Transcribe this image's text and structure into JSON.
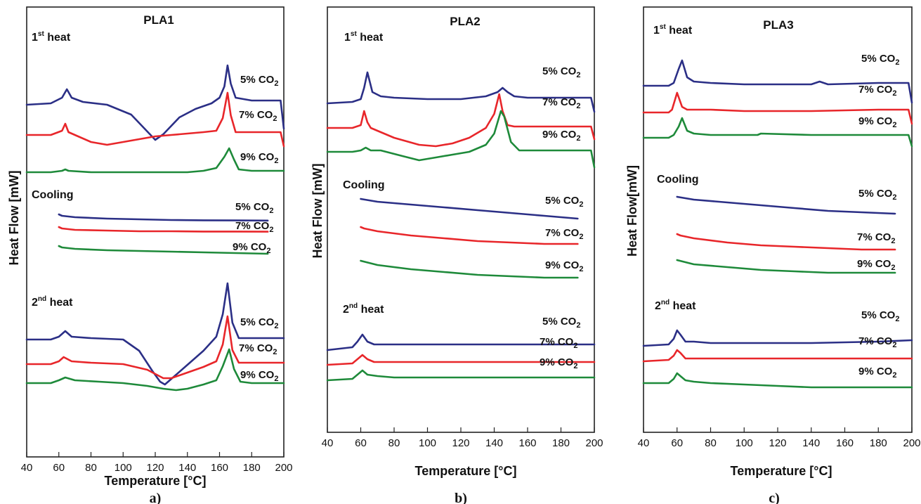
{
  "figure": {
    "x_axis_label": "Temperature [°C]",
    "heat_flow_label": "Heat Flow [mW]",
    "heat_flow_label_c": "Heat Flow[mW]"
  },
  "colors": {
    "5% CO2": "#2b2f86",
    "7% CO2": "#e8262a",
    "9% CO2": "#1e8a3a"
  },
  "series_labels": [
    "5% CO2",
    "7% CO2",
    "9% CO2"
  ],
  "section_labels": {
    "first_heat": "1st heat",
    "cooling": "Cooling",
    "second_heat": "2nd heat"
  },
  "chart_data": [
    {
      "type": "line",
      "panel": "a)",
      "title": "PLA1",
      "xlabel": "Temperature [°C]",
      "ylabel": "Heat Flow [mW]",
      "xlim": [
        40,
        200
      ],
      "xticks": [
        40,
        60,
        80,
        100,
        120,
        140,
        160,
        180,
        200
      ],
      "y_units": "relative (offset traces, no numeric scale shown)",
      "series": [
        {
          "group": "1st heat",
          "name": "5% CO2",
          "x": [
            40,
            55,
            62,
            65,
            68,
            75,
            90,
            105,
            115,
            120,
            125,
            135,
            145,
            155,
            160,
            163,
            165,
            167,
            170,
            180,
            190,
            198,
            200
          ],
          "y": [
            -3,
            -2,
            2,
            8,
            2,
            -1,
            -3,
            -10,
            -22,
            -28,
            -24,
            -12,
            -6,
            -2,
            2,
            10,
            25,
            12,
            2,
            0,
            0,
            0,
            -20
          ]
        },
        {
          "group": "1st heat",
          "name": "7% CO2",
          "x": [
            40,
            55,
            62,
            64,
            66,
            72,
            80,
            90,
            100,
            110,
            120,
            130,
            140,
            150,
            158,
            162,
            165,
            167,
            170,
            180,
            190,
            198,
            200
          ],
          "y": [
            -2,
            -2,
            1,
            6,
            0,
            -3,
            -7,
            -9,
            -7,
            -5,
            -3,
            -2,
            -1,
            0,
            1,
            10,
            28,
            12,
            0,
            0,
            0,
            0,
            -10
          ]
        },
        {
          "group": "1st heat",
          "name": "9% CO2",
          "x": [
            40,
            55,
            62,
            64,
            66,
            80,
            100,
            120,
            140,
            150,
            158,
            163,
            166,
            169,
            172,
            180,
            190,
            200
          ],
          "y": [
            -1,
            -1,
            0,
            1,
            0,
            -1,
            -1,
            -1,
            -1,
            0,
            2,
            10,
            16,
            8,
            1,
            0,
            0,
            0
          ]
        },
        {
          "group": "Cooling",
          "name": "5% CO2",
          "x": [
            60,
            62,
            70,
            90,
            110,
            130,
            150,
            170,
            190
          ],
          "y": [
            0,
            -1,
            -2,
            -3,
            -3.5,
            -4,
            -4.2,
            -4.3,
            -4.4
          ]
        },
        {
          "group": "Cooling",
          "name": "7% CO2",
          "x": [
            60,
            62,
            70,
            90,
            110,
            130,
            150,
            170,
            190
          ],
          "y": [
            0,
            -1,
            -2,
            -2.5,
            -3,
            -3,
            -3.2,
            -3.2,
            -3.3
          ]
        },
        {
          "group": "Cooling",
          "name": "9% CO2",
          "x": [
            60,
            62,
            70,
            90,
            110,
            130,
            150,
            170,
            190
          ],
          "y": [
            0,
            -1,
            -2,
            -3,
            -3.5,
            -4,
            -4.5,
            -5,
            -5.5
          ]
        },
        {
          "group": "2nd heat",
          "name": "5% CO2",
          "x": [
            40,
            55,
            60,
            64,
            68,
            80,
            100,
            110,
            118,
            123,
            126,
            130,
            140,
            150,
            158,
            162,
            165,
            168,
            172,
            180,
            200
          ],
          "y": [
            0,
            0,
            2,
            6,
            2,
            1,
            0,
            -8,
            -22,
            -30,
            -32,
            -28,
            -18,
            -8,
            2,
            18,
            40,
            12,
            1,
            1,
            1
          ]
        },
        {
          "group": "2nd heat",
          "name": "7% CO2",
          "x": [
            40,
            55,
            60,
            63,
            68,
            80,
            100,
            115,
            125,
            130,
            140,
            150,
            158,
            162,
            165,
            168,
            172,
            180,
            200
          ],
          "y": [
            0,
            0,
            2,
            5,
            2,
            1,
            0,
            -4,
            -10,
            -10,
            -6,
            -2,
            2,
            14,
            34,
            10,
            1,
            1,
            1
          ]
        },
        {
          "group": "2nd heat",
          "name": "9% CO2",
          "x": [
            40,
            55,
            60,
            64,
            70,
            85,
            100,
            115,
            125,
            133,
            140,
            150,
            158,
            162,
            166,
            169,
            173,
            180,
            200
          ],
          "y": [
            0,
            0,
            2,
            4,
            2,
            1,
            0,
            -2,
            -4,
            -5,
            -4,
            -1,
            2,
            12,
            24,
            10,
            1,
            0,
            0
          ]
        }
      ],
      "series_labels": [
        "5% CO2",
        "7% CO2",
        "9% CO2"
      ]
    },
    {
      "type": "line",
      "panel": "b)",
      "title": "PLA2",
      "xlabel": "Temperature [°C]",
      "ylabel": "Heat Flow [mW]",
      "xlim": [
        40,
        200
      ],
      "xticks": [
        40,
        60,
        80,
        100,
        120,
        140,
        160,
        180,
        200
      ],
      "y_units": "relative (offset traces, no numeric scale shown)",
      "series": [
        {
          "group": "1st heat",
          "name": "5% CO2",
          "x": [
            40,
            55,
            60,
            62,
            64,
            67,
            72,
            80,
            100,
            120,
            135,
            142,
            145,
            148,
            152,
            160,
            180,
            198,
            200
          ],
          "y": [
            -6,
            -5,
            -3,
            5,
            16,
            2,
            -1,
            -2,
            -3,
            -3,
            -1,
            2,
            5,
            2,
            -1,
            -2,
            -2,
            -2,
            -12
          ]
        },
        {
          "group": "1st heat",
          "name": "7% CO2",
          "x": [
            40,
            55,
            60,
            62,
            64,
            66,
            72,
            80,
            95,
            105,
            115,
            125,
            135,
            140,
            143,
            145,
            148,
            152,
            160,
            180,
            198,
            200
          ],
          "y": [
            -2,
            -2,
            0,
            10,
            2,
            -2,
            -5,
            -9,
            -14,
            -15,
            -13,
            -9,
            -2,
            8,
            22,
            10,
            0,
            -1,
            -1,
            -1,
            -1,
            -10
          ]
        },
        {
          "group": "1st heat",
          "name": "9% CO2",
          "x": [
            40,
            55,
            60,
            63,
            66,
            72,
            85,
            95,
            105,
            115,
            125,
            135,
            140,
            144,
            146,
            150,
            155,
            160,
            180,
            198,
            200
          ],
          "y": [
            -1,
            -1,
            0,
            2,
            0,
            0,
            -4,
            -7,
            -5,
            -3,
            -1,
            4,
            12,
            28,
            24,
            6,
            0,
            0,
            0,
            0,
            -12
          ]
        },
        {
          "group": "Cooling",
          "name": "5% CO2",
          "x": [
            60,
            70,
            90,
            110,
            130,
            150,
            170,
            190
          ],
          "y": [
            0,
            -2,
            -4,
            -6,
            -8,
            -10,
            -12,
            -14
          ]
        },
        {
          "group": "Cooling",
          "name": "7% CO2",
          "x": [
            60,
            62,
            70,
            90,
            110,
            130,
            150,
            170,
            190
          ],
          "y": [
            0,
            -1,
            -3,
            -6,
            -8,
            -10,
            -11,
            -12,
            -12
          ]
        },
        {
          "group": "Cooling",
          "name": "9% CO2",
          "x": [
            60,
            70,
            90,
            110,
            130,
            150,
            170,
            190
          ],
          "y": [
            0,
            -3,
            -6,
            -8,
            -10,
            -11,
            -12,
            -12
          ]
        },
        {
          "group": "2nd heat",
          "name": "5% CO2",
          "x": [
            40,
            55,
            58,
            61,
            64,
            68,
            80,
            100,
            140,
            180,
            200
          ],
          "y": [
            -4,
            -2,
            2,
            7,
            2,
            0,
            0,
            0,
            0,
            0,
            0
          ]
        },
        {
          "group": "2nd heat",
          "name": "7% CO2",
          "x": [
            40,
            55,
            58,
            61,
            64,
            68,
            80,
            100,
            140,
            180,
            200
          ],
          "y": [
            -2,
            -1,
            2,
            5,
            2,
            0,
            0,
            0,
            0,
            0,
            0
          ]
        },
        {
          "group": "2nd heat",
          "name": "9% CO2",
          "x": [
            40,
            55,
            58,
            61,
            64,
            70,
            80,
            100,
            140,
            180,
            200
          ],
          "y": [
            -2,
            -1,
            2,
            5,
            2,
            1,
            0,
            0,
            0,
            0,
            0
          ]
        }
      ],
      "series_labels": [
        "5% CO2",
        "7% CO2",
        "9% CO2"
      ]
    },
    {
      "type": "line",
      "panel": "c)",
      "title": "PLA3",
      "xlabel": "Temperature [°C]",
      "ylabel": "Heat Flow[mW]",
      "xlim": [
        40,
        200
      ],
      "xticks": [
        40,
        60,
        80,
        100,
        120,
        140,
        160,
        180,
        200
      ],
      "y_units": "relative (offset traces, no numeric scale shown)",
      "series": [
        {
          "group": "1st heat",
          "name": "5% CO2",
          "x": [
            40,
            55,
            58,
            61,
            63,
            66,
            70,
            80,
            100,
            120,
            140,
            145,
            150,
            180,
            198,
            200
          ],
          "y": [
            -2,
            -2,
            0,
            10,
            16,
            4,
            1,
            0,
            -1,
            -1,
            -1,
            1,
            -1,
            0,
            0,
            -14
          ]
        },
        {
          "group": "1st heat",
          "name": "7% CO2",
          "x": [
            40,
            55,
            57,
            60,
            63,
            66,
            70,
            80,
            100,
            120,
            140,
            180,
            198,
            200
          ],
          "y": [
            -2,
            -2,
            0,
            12,
            2,
            0,
            0,
            0,
            -1,
            -1,
            -1,
            0,
            0,
            -10
          ]
        },
        {
          "group": "1st heat",
          "name": "9% CO2",
          "x": [
            40,
            55,
            58,
            61,
            63,
            66,
            70,
            80,
            108,
            110,
            140,
            180,
            198,
            200
          ],
          "y": [
            -2,
            -2,
            0,
            6,
            12,
            3,
            1,
            0,
            0,
            1,
            0,
            0,
            0,
            -8
          ]
        },
        {
          "group": "Cooling",
          "name": "5% CO2",
          "x": [
            60,
            70,
            90,
            110,
            130,
            150,
            170,
            190
          ],
          "y": [
            0,
            -2,
            -4,
            -6,
            -8,
            -10,
            -11,
            -12
          ]
        },
        {
          "group": "Cooling",
          "name": "7% CO2",
          "x": [
            60,
            62,
            70,
            90,
            110,
            130,
            150,
            170,
            190
          ],
          "y": [
            0,
            -1,
            -3,
            -6,
            -8,
            -9,
            -10,
            -11,
            -11
          ]
        },
        {
          "group": "Cooling",
          "name": "9% CO2",
          "x": [
            60,
            70,
            90,
            110,
            130,
            150,
            170,
            190
          ],
          "y": [
            0,
            -3,
            -5,
            -7,
            -8,
            -9,
            -9,
            -9
          ]
        },
        {
          "group": "2nd heat",
          "name": "5% CO2",
          "x": [
            40,
            55,
            58,
            60,
            62,
            65,
            70,
            80,
            100,
            140,
            180,
            200
          ],
          "y": [
            -3,
            -2,
            2,
            8,
            5,
            0,
            0,
            -1,
            -1,
            -1,
            0,
            1
          ]
        },
        {
          "group": "2nd heat",
          "name": "7% CO2",
          "x": [
            40,
            55,
            58,
            60,
            62,
            65,
            70,
            80,
            100,
            140,
            180,
            200
          ],
          "y": [
            -2,
            -1,
            2,
            6,
            4,
            0,
            0,
            0,
            0,
            0,
            0,
            0
          ]
        },
        {
          "group": "2nd heat",
          "name": "9% CO2",
          "x": [
            40,
            55,
            58,
            60,
            62,
            65,
            70,
            80,
            100,
            120,
            140,
            180,
            200
          ],
          "y": [
            -1,
            -1,
            2,
            6,
            4,
            1,
            0,
            -1,
            -2,
            -3,
            -4,
            -4,
            -4
          ]
        }
      ],
      "series_labels": [
        "5% CO2",
        "7% CO2",
        "9% CO2"
      ]
    }
  ]
}
